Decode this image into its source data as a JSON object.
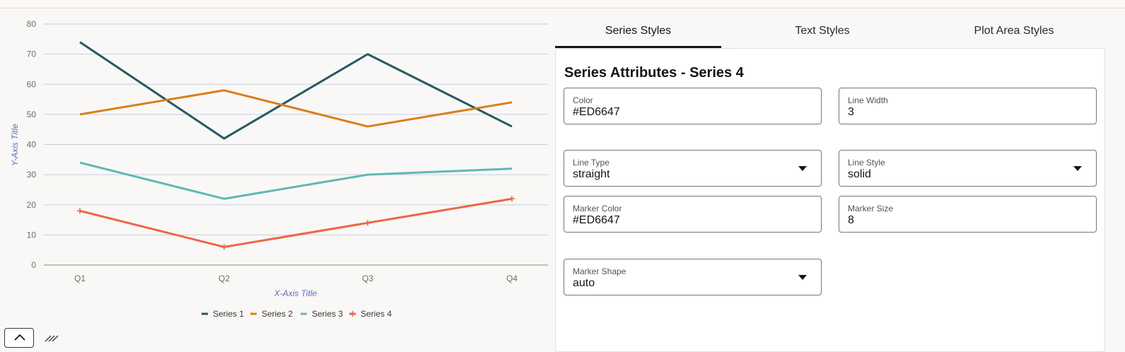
{
  "tabs": [
    {
      "label": "Series Styles",
      "active": true
    },
    {
      "label": "Text Styles",
      "active": false
    },
    {
      "label": "Plot Area Styles",
      "active": false
    }
  ],
  "panel": {
    "title": "Series Attributes - Series 4",
    "fields": {
      "color": {
        "label": "Color",
        "value": "#ED6647"
      },
      "line_width": {
        "label": "Line Width",
        "value": "3"
      },
      "line_type": {
        "label": "Line Type",
        "value": "straight"
      },
      "line_style": {
        "label": "Line Style",
        "value": "solid"
      },
      "marker_color": {
        "label": "Marker Color",
        "value": "#ED6647"
      },
      "marker_size": {
        "label": "Marker Size",
        "value": "8"
      },
      "marker_shape": {
        "label": "Marker Shape",
        "value": "auto"
      }
    }
  },
  "chart_data": {
    "type": "line",
    "title": "",
    "xlabel": "X-Axis Title",
    "ylabel": "Y-Axis Title",
    "categories": [
      "Q1",
      "Q2",
      "Q3",
      "Q4"
    ],
    "ylim": [
      0,
      80
    ],
    "yticks": [
      0,
      10,
      20,
      30,
      40,
      50,
      60,
      70,
      80
    ],
    "grid": true,
    "legend": "bottom",
    "series": [
      {
        "name": "Series 1",
        "values": [
          74,
          42,
          70,
          46
        ],
        "color": "#255a5f",
        "marker": "none"
      },
      {
        "name": "Series 2",
        "values": [
          50,
          58,
          46,
          54
        ],
        "color": "#da7f1a",
        "marker": "none"
      },
      {
        "name": "Series 3",
        "values": [
          34,
          22,
          30,
          32
        ],
        "color": "#5fb8b5",
        "marker": "none"
      },
      {
        "name": "Series 4",
        "values": [
          18,
          6,
          14,
          22
        ],
        "color": "#ed6647",
        "marker": "plus"
      }
    ]
  }
}
